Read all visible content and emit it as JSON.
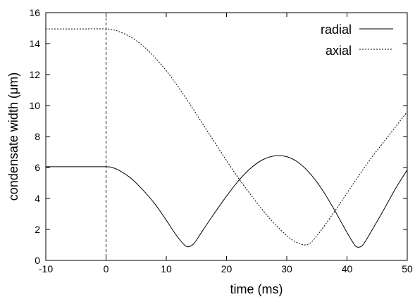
{
  "chart_data": {
    "type": "line",
    "xlabel": "time (ms)",
    "ylabel": "condensate width (μm)",
    "xlim": [
      -10,
      50
    ],
    "ylim": [
      0,
      16
    ],
    "xticks": [
      "-10",
      "0",
      "10",
      "20",
      "30",
      "40",
      "50"
    ],
    "yticks": [
      "0",
      "2",
      "4",
      "6",
      "8",
      "10",
      "12",
      "14",
      "16"
    ],
    "grid": false,
    "legend_position": "top-right",
    "reference_line_x": 0,
    "series": [
      {
        "name": "radial",
        "style": "solid",
        "color": "#000000",
        "x": [
          -10,
          -5,
          0,
          1,
          2,
          4,
          6,
          8,
          10,
          11,
          12,
          13,
          13.5,
          14,
          14.5,
          15,
          16,
          18,
          20,
          22,
          24,
          26,
          28,
          30,
          32,
          34,
          36,
          38,
          39,
          40,
          41,
          41.5,
          42,
          42.5,
          43,
          44,
          46,
          48,
          50
        ],
        "y": [
          6.05,
          6.05,
          6.05,
          6.0,
          5.85,
          5.35,
          4.6,
          3.7,
          2.6,
          2.0,
          1.45,
          1.0,
          0.88,
          0.92,
          1.05,
          1.3,
          1.9,
          3.05,
          4.15,
          5.15,
          5.95,
          6.5,
          6.75,
          6.7,
          6.3,
          5.55,
          4.5,
          3.2,
          2.5,
          1.8,
          1.15,
          0.9,
          0.85,
          0.95,
          1.2,
          1.85,
          3.2,
          4.6,
          5.85
        ]
      },
      {
        "name": "axial",
        "style": "dashed",
        "color": "#000000",
        "x": [
          -10,
          -5,
          0,
          1,
          2,
          4,
          6,
          8,
          10,
          12,
          14,
          16,
          18,
          20,
          22,
          24,
          26,
          28,
          30,
          31,
          32,
          33,
          34,
          35,
          36,
          38,
          40,
          42,
          44,
          46,
          48,
          50
        ],
        "y": [
          14.95,
          14.95,
          14.95,
          14.9,
          14.8,
          14.45,
          13.9,
          13.15,
          12.25,
          11.2,
          10.05,
          8.85,
          7.65,
          6.45,
          5.3,
          4.25,
          3.25,
          2.35,
          1.6,
          1.3,
          1.1,
          1.0,
          1.15,
          1.6,
          2.1,
          3.2,
          4.35,
          5.5,
          6.6,
          7.6,
          8.6,
          9.6
        ]
      }
    ]
  }
}
